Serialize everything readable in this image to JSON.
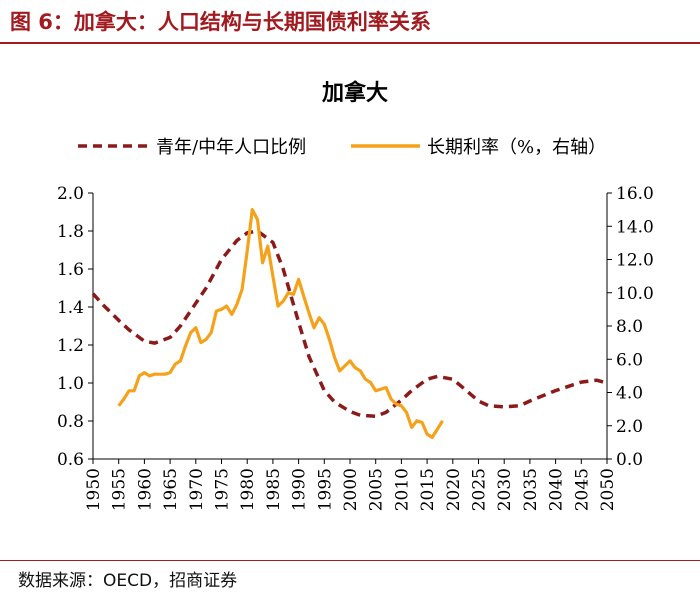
{
  "figure": {
    "label": "图 6：加拿大：人口结构与长期国债利率关系",
    "source": "数据来源：OECD，招商证券"
  },
  "colors": {
    "accent": "#a01a1f",
    "ratio_line": "#8b1a1a",
    "rate_line": "#f5a21a"
  },
  "chart_data": {
    "type": "line",
    "title": "加拿大",
    "legend_position": "top",
    "x_ticks": [
      1950,
      1955,
      1960,
      1965,
      1970,
      1975,
      1980,
      1985,
      1990,
      1995,
      2000,
      2005,
      2010,
      2015,
      2020,
      2025,
      2030,
      2035,
      2040,
      2045,
      2050
    ],
    "x_tick_labels": [
      "1950",
      "1955",
      "1960",
      "1965",
      "1970",
      "1975",
      "1980",
      "1985",
      "1990",
      "1995",
      "2000",
      "2005",
      "2010",
      "2015",
      "2020",
      "2025",
      "2030",
      "2035",
      "2040",
      "2045",
      "2050"
    ],
    "xlim": [
      1950,
      2050
    ],
    "y_left": {
      "lim": [
        0.6,
        2.0
      ],
      "ticks": [
        "0.6",
        "0.8",
        "1.0",
        "1.2",
        "1.4",
        "1.6",
        "1.8",
        "2.0"
      ]
    },
    "y_right": {
      "lim": [
        0,
        16
      ],
      "ticks": [
        "0.0",
        "2.0",
        "4.0",
        "6.0",
        "8.0",
        "10.0",
        "12.0",
        "14.0",
        "16.0"
      ]
    },
    "series": [
      {
        "name": "青年/中年人口比例",
        "axis": "left",
        "style": "dashed",
        "x": [
          1950,
          1952,
          1955,
          1957,
          1960,
          1962,
          1965,
          1967,
          1970,
          1972,
          1975,
          1978,
          1980,
          1982,
          1985,
          1987,
          1990,
          1992,
          1995,
          1997,
          2000,
          2002,
          2005,
          2007,
          2010,
          2012,
          2015,
          2017,
          2020,
          2022,
          2025,
          2027,
          2030,
          2033,
          2035,
          2040,
          2045,
          2048,
          2050
        ],
        "values": [
          1.47,
          1.41,
          1.33,
          1.28,
          1.22,
          1.21,
          1.24,
          1.3,
          1.42,
          1.5,
          1.65,
          1.75,
          1.79,
          1.8,
          1.74,
          1.6,
          1.32,
          1.14,
          0.96,
          0.9,
          0.85,
          0.83,
          0.825,
          0.845,
          0.91,
          0.96,
          1.02,
          1.035,
          1.02,
          0.975,
          0.905,
          0.88,
          0.875,
          0.88,
          0.905,
          0.96,
          1.005,
          1.015,
          1.0
        ]
      },
      {
        "name": "长期利率（%，右轴）",
        "axis": "right",
        "style": "solid",
        "x": [
          1955,
          1956,
          1957,
          1958,
          1959,
          1960,
          1961,
          1962,
          1963,
          1964,
          1965,
          1966,
          1967,
          1968,
          1969,
          1970,
          1971,
          1972,
          1973,
          1974,
          1975,
          1976,
          1977,
          1978,
          1979,
          1980,
          1981,
          1982,
          1983,
          1984,
          1985,
          1986,
          1987,
          1988,
          1989,
          1990,
          1991,
          1992,
          1993,
          1994,
          1995,
          1996,
          1997,
          1998,
          1999,
          2000,
          2001,
          2002,
          2003,
          2004,
          2005,
          2006,
          2007,
          2008,
          2009,
          2010,
          2011,
          2012,
          2013,
          2014,
          2015,
          2016,
          2017,
          2018
        ],
        "values": [
          3.2,
          3.6,
          4.1,
          4.1,
          5.0,
          5.2,
          5.0,
          5.1,
          5.1,
          5.1,
          5.2,
          5.7,
          5.9,
          6.8,
          7.6,
          7.9,
          7.0,
          7.2,
          7.6,
          8.9,
          9.0,
          9.2,
          8.7,
          9.3,
          10.2,
          12.5,
          15.0,
          14.4,
          11.8,
          12.8,
          11.0,
          9.2,
          9.5,
          10.0,
          9.9,
          10.8,
          9.8,
          8.8,
          7.9,
          8.5,
          8.1,
          7.2,
          6.1,
          5.3,
          5.6,
          5.9,
          5.5,
          5.3,
          4.8,
          4.6,
          4.1,
          4.2,
          4.3,
          3.6,
          3.3,
          3.2,
          2.8,
          1.9,
          2.3,
          2.2,
          1.5,
          1.3,
          1.8,
          2.3
        ]
      }
    ]
  }
}
